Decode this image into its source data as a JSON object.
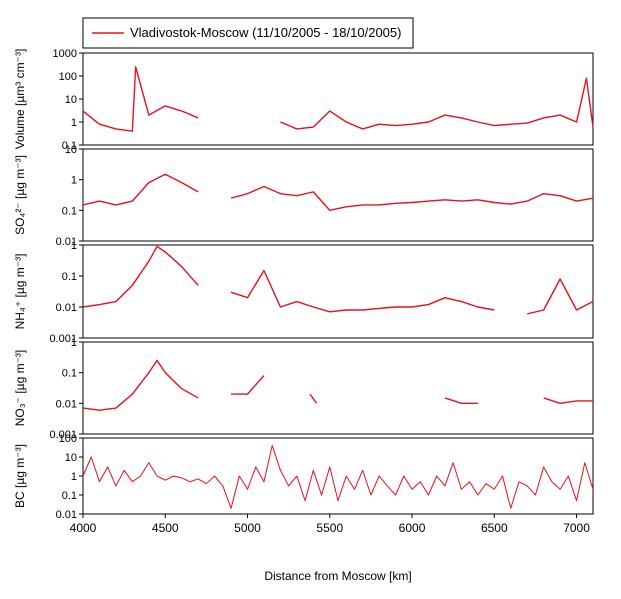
{
  "chart_data": [
    {
      "type": "line",
      "ylabel": "Volume [µm³ cm⁻³]",
      "log_scale": true,
      "legend": "top-left",
      "xlim": [
        4000,
        7100
      ],
      "ylim": [
        0.1,
        1000
      ],
      "yticks": [
        0.1,
        1,
        10,
        100,
        1000
      ],
      "x": [
        4000,
        4100,
        4200,
        4300,
        4320,
        4400,
        4500,
        4600,
        4700,
        4800,
        4900,
        5000,
        5100,
        5200,
        5300,
        5400,
        5500,
        5600,
        5700,
        5800,
        5900,
        6000,
        6100,
        6200,
        6300,
        6400,
        6500,
        6600,
        6700,
        6800,
        6900,
        7000,
        7060,
        7100
      ],
      "series": [
        {
          "name": "Vladivostok-Moscow (11/10/2005 - 18/10/2005)",
          "color": "#e8101a",
          "values": [
            3,
            0.8,
            0.5,
            0.4,
            250,
            2,
            5,
            3,
            1.5,
            null,
            null,
            null,
            null,
            1,
            0.5,
            0.6,
            3,
            1,
            0.5,
            0.8,
            0.7,
            0.8,
            1,
            2,
            1.5,
            1,
            0.7,
            0.8,
            0.9,
            1.5,
            2,
            1,
            80,
            0.6
          ]
        }
      ]
    },
    {
      "type": "line",
      "ylabel": "SO₄²⁻ [µg m⁻³]",
      "log_scale": true,
      "xlim": [
        4000,
        7100
      ],
      "ylim": [
        0.01,
        10
      ],
      "yticks": [
        0.01,
        0.1,
        1,
        10
      ],
      "x": [
        4000,
        4100,
        4200,
        4300,
        4400,
        4500,
        4600,
        4700,
        4800,
        4900,
        5000,
        5100,
        5200,
        5300,
        5400,
        5500,
        5600,
        5700,
        5800,
        5900,
        6000,
        6100,
        6200,
        6300,
        6400,
        6500,
        6600,
        6700,
        6800,
        6900,
        7000,
        7100
      ],
      "series": [
        {
          "color": "#e8101a",
          "values": [
            0.15,
            0.2,
            0.15,
            0.2,
            0.8,
            1.5,
            0.8,
            0.4,
            null,
            0.25,
            0.35,
            0.6,
            0.35,
            0.3,
            0.4,
            0.1,
            0.13,
            0.15,
            0.15,
            0.17,
            0.18,
            0.2,
            0.22,
            0.2,
            0.22,
            0.18,
            0.16,
            0.2,
            0.35,
            0.3,
            0.2,
            0.25
          ]
        }
      ]
    },
    {
      "type": "line",
      "ylabel": "NH₄⁺ [µg m⁻³]",
      "log_scale": true,
      "xlim": [
        4000,
        7100
      ],
      "ylim": [
        0.001,
        1
      ],
      "yticks": [
        0.001,
        0.01,
        0.1,
        1
      ],
      "x": [
        4000,
        4100,
        4200,
        4300,
        4400,
        4450,
        4500,
        4600,
        4700,
        4800,
        4900,
        5000,
        5100,
        5200,
        5300,
        5400,
        5500,
        5600,
        5700,
        5800,
        5900,
        6000,
        6100,
        6200,
        6300,
        6400,
        6500,
        6600,
        6700,
        6800,
        6900,
        7000,
        7100
      ],
      "series": [
        {
          "color": "#e8101a",
          "values": [
            0.01,
            0.012,
            0.015,
            0.05,
            0.3,
            0.9,
            0.6,
            0.2,
            0.05,
            null,
            0.03,
            0.02,
            0.15,
            0.01,
            0.015,
            0.01,
            0.007,
            0.008,
            0.008,
            0.009,
            0.01,
            0.01,
            0.012,
            0.02,
            0.015,
            0.01,
            0.008,
            null,
            0.006,
            0.008,
            0.08,
            0.008,
            0.015
          ]
        }
      ]
    },
    {
      "type": "line",
      "ylabel": "NO₃⁻ [µg m⁻³]",
      "log_scale": true,
      "xlim": [
        4000,
        7100
      ],
      "ylim": [
        0.001,
        1
      ],
      "yticks": [
        0.001,
        0.01,
        0.1,
        1
      ],
      "x": [
        4000,
        4100,
        4200,
        4300,
        4400,
        4450,
        4500,
        4600,
        4700,
        4800,
        4900,
        5000,
        5100,
        5200,
        5380,
        5420,
        5500,
        6200,
        6300,
        6400,
        6500,
        6800,
        6900,
        7000,
        7100
      ],
      "series": [
        {
          "color": "#e8101a",
          "values": [
            0.007,
            0.006,
            0.007,
            0.02,
            0.1,
            0.25,
            0.1,
            0.03,
            0.015,
            null,
            0.02,
            0.02,
            0.08,
            null,
            0.02,
            0.01,
            null,
            0.015,
            0.01,
            0.01,
            null,
            0.015,
            0.01,
            0.012,
            0.012
          ]
        }
      ]
    },
    {
      "type": "line",
      "ylabel": "BC [µg m⁻³]",
      "xlabel": "Distance from Moscow [km]",
      "log_scale": true,
      "xlim": [
        4000,
        7100
      ],
      "xticks": [
        4000,
        4500,
        5000,
        5500,
        6000,
        6500,
        7000
      ],
      "ylim": [
        0.01,
        100
      ],
      "yticks": [
        0.01,
        0.1,
        1,
        10,
        100
      ],
      "x": [
        4000,
        4050,
        4100,
        4150,
        4200,
        4250,
        4300,
        4350,
        4400,
        4450,
        4500,
        4550,
        4600,
        4650,
        4700,
        4750,
        4800,
        4850,
        4900,
        4950,
        5000,
        5050,
        5100,
        5150,
        5200,
        5250,
        5300,
        5350,
        5400,
        5450,
        5500,
        5550,
        5600,
        5650,
        5700,
        5750,
        5800,
        5850,
        5900,
        5950,
        6000,
        6050,
        6100,
        6150,
        6200,
        6250,
        6300,
        6350,
        6400,
        6450,
        6500,
        6550,
        6600,
        6650,
        6700,
        6750,
        6800,
        6850,
        6900,
        6950,
        7000,
        7050,
        7100
      ],
      "series": [
        {
          "color": "#e8101a",
          "values": [
            1,
            10,
            0.5,
            3,
            0.3,
            2,
            0.5,
            1,
            5,
            1,
            0.6,
            1,
            0.8,
            0.5,
            0.7,
            0.4,
            1,
            0.3,
            0.02,
            1,
            0.2,
            3,
            0.5,
            40,
            2,
            0.3,
            1,
            0.05,
            2,
            0.1,
            3,
            0.05,
            1,
            0.2,
            2,
            0.1,
            1,
            0.3,
            0.1,
            1,
            0.2,
            0.5,
            0.1,
            1,
            0.3,
            5,
            0.2,
            0.5,
            0.1,
            0.4,
            0.2,
            1,
            0.02,
            0.5,
            0.3,
            0.1,
            3,
            0.5,
            0.2,
            1,
            0.05,
            5,
            0.2
          ]
        }
      ]
    }
  ]
}
